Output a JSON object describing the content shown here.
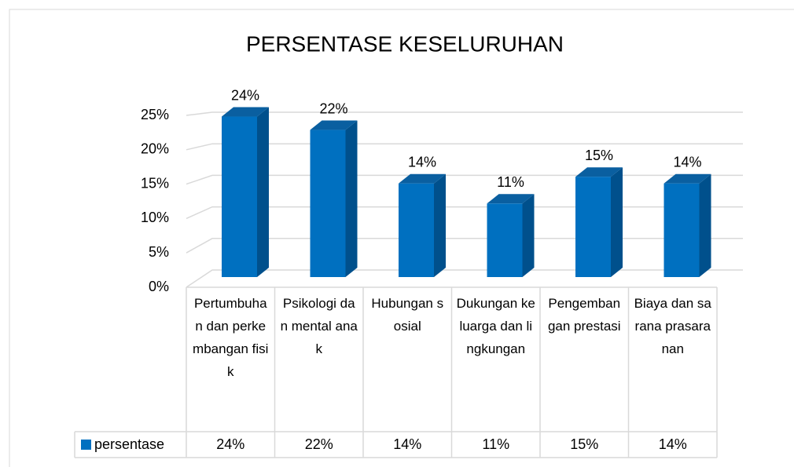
{
  "chart_data": {
    "type": "bar3d",
    "title": "PERSENTASE KESELURUHAN",
    "categories": [
      "Pertumbuhan dan perkembangan fisik",
      "Psikologi dan mental anak",
      "Hubungan sosial",
      "Dukungan keluarga dan lingkungan",
      "Pengembangan prestasi",
      "Biaya dan sarana prasaranan"
    ],
    "series": [
      {
        "name": "persentase",
        "color": "#0070c0",
        "values": [
          24,
          22,
          14,
          11,
          15,
          14
        ],
        "value_labels": [
          "24%",
          "22%",
          "14%",
          "11%",
          "15%",
          "14%"
        ]
      }
    ],
    "ylim": [
      0,
      25
    ],
    "yticks": [
      {
        "value": 0,
        "label": "0%"
      },
      {
        "value": 5,
        "label": "5%"
      },
      {
        "value": 10,
        "label": "10%"
      },
      {
        "value": 15,
        "label": "15%"
      },
      {
        "value": 20,
        "label": "20%"
      },
      {
        "value": 25,
        "label": "25%"
      }
    ],
    "grid": true,
    "data_table": true
  }
}
